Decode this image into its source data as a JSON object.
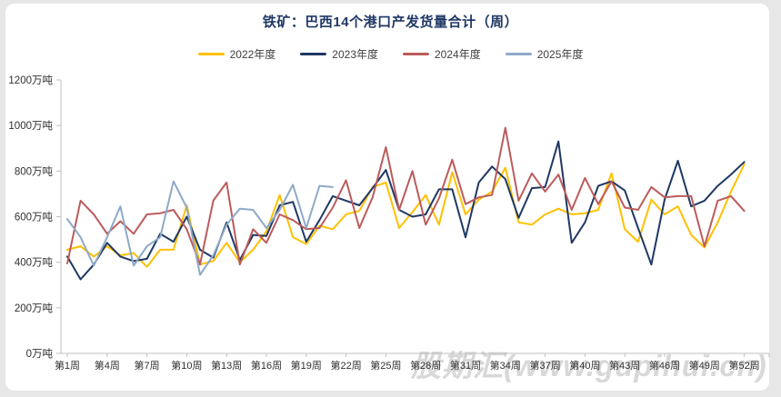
{
  "title": "铁矿：巴西14个港口产发货量合计（周）",
  "watermark": "股期汇(www.gupihui.cn)",
  "colors": {
    "title": "#1f3864",
    "axis": "#bfbfbf",
    "tick_text": "#303030",
    "background": "#e7e7e7",
    "card": "#ffffff",
    "watermark": "#bfbfbf"
  },
  "chart_data": {
    "type": "line",
    "title": "铁矿：巴西14个港口产发货量合计（周）",
    "xlabel": "",
    "ylabel": "万吨",
    "ylim": [
      0,
      1200
    ],
    "grid": false,
    "legend_position": "top",
    "x_weeks": 52,
    "y_ticks": [
      {
        "value": 0,
        "label": "0万吨"
      },
      {
        "value": 200,
        "label": "200万吨"
      },
      {
        "value": 400,
        "label": "400万吨"
      },
      {
        "value": 600,
        "label": "600万吨"
      },
      {
        "value": 800,
        "label": "800万吨"
      },
      {
        "value": 1000,
        "label": "1000万吨"
      },
      {
        "value": 1200,
        "label": "1200万吨"
      }
    ],
    "x_ticks": [
      {
        "week": 1,
        "label": "第1周"
      },
      {
        "week": 4,
        "label": "第4周"
      },
      {
        "week": 7,
        "label": "第7周"
      },
      {
        "week": 10,
        "label": "第10周"
      },
      {
        "week": 13,
        "label": "第13周"
      },
      {
        "week": 16,
        "label": "第16周"
      },
      {
        "week": 19,
        "label": "第19周"
      },
      {
        "week": 22,
        "label": "第22周"
      },
      {
        "week": 25,
        "label": "第25周"
      },
      {
        "week": 28,
        "label": "第28周"
      },
      {
        "week": 31,
        "label": "第31周"
      },
      {
        "week": 34,
        "label": "第34周"
      },
      {
        "week": 37,
        "label": "第37周"
      },
      {
        "week": 40,
        "label": "第40周"
      },
      {
        "week": 43,
        "label": "第43周"
      },
      {
        "week": 46,
        "label": "第46周"
      },
      {
        "week": 49,
        "label": "第49周"
      },
      {
        "week": 52,
        "label": "第52周"
      }
    ],
    "series": [
      {
        "name": "2022年度",
        "color": "#FFC000",
        "values": [
          455,
          470,
          425,
          470,
          430,
          440,
          380,
          455,
          455,
          650,
          390,
          405,
          485,
          400,
          455,
          535,
          695,
          510,
          480,
          560,
          545,
          610,
          625,
          730,
          750,
          550,
          620,
          695,
          565,
          795,
          610,
          675,
          710,
          815,
          575,
          565,
          610,
          635,
          610,
          615,
          630,
          790,
          545,
          490,
          675,
          610,
          645,
          520,
          465,
          575,
          710,
          830
        ]
      },
      {
        "name": "2023年度",
        "color": "#1F3864",
        "values": [
          425,
          325,
          390,
          485,
          425,
          405,
          415,
          525,
          490,
          600,
          455,
          420,
          575,
          410,
          520,
          515,
          650,
          665,
          490,
          585,
          690,
          670,
          650,
          725,
          805,
          630,
          600,
          610,
          720,
          720,
          510,
          750,
          820,
          765,
          595,
          725,
          730,
          930,
          485,
          575,
          735,
          755,
          715,
          550,
          390,
          675,
          845,
          645,
          670,
          735,
          785,
          840
        ]
      },
      {
        "name": "2024年度",
        "color": "#BC5B5B",
        "values": [
          395,
          670,
          610,
          525,
          580,
          525,
          610,
          615,
          630,
          545,
          390,
          670,
          750,
          390,
          545,
          485,
          610,
          585,
          545,
          550,
          640,
          760,
          550,
          685,
          905,
          630,
          800,
          565,
          680,
          850,
          655,
          685,
          695,
          990,
          670,
          790,
          710,
          785,
          630,
          770,
          655,
          755,
          640,
          630,
          730,
          685,
          690,
          690,
          470,
          670,
          690,
          625
        ]
      },
      {
        "name": "2025年度",
        "color": "#8FA9C8",
        "values": [
          590,
          510,
          385,
          510,
          645,
          385,
          470,
          510,
          755,
          640,
          345,
          430,
          565,
          635,
          630,
          550,
          630,
          740,
          550,
          735,
          730
        ]
      }
    ]
  }
}
